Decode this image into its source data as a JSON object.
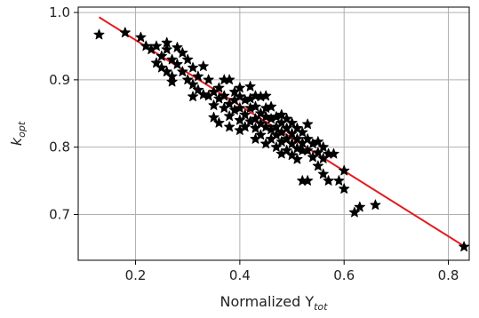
{
  "chart_data": {
    "type": "scatter",
    "title": "",
    "xlabel": "Normalized Y",
    "xlabel_sub": "tot",
    "ylabel": "k",
    "ylabel_sub": "opt",
    "xlim": [
      0.09,
      0.84
    ],
    "ylim": [
      0.632,
      1.008
    ],
    "grid": true,
    "x_ticks": [
      0.2,
      0.4,
      0.6,
      0.8
    ],
    "y_ticks": [
      0.7,
      0.8,
      0.9,
      1.0
    ],
    "x_tick_labels": [
      "0.2",
      "0.4",
      "0.6",
      "0.8"
    ],
    "y_tick_labels": [
      "0.7",
      "0.8",
      "0.9",
      "1.0"
    ],
    "colors": {
      "marker": "#000000",
      "fit_line": "#e41a1c",
      "grid": "#b0b0b0"
    },
    "series": [
      {
        "marker": "star",
        "points": [
          [
            0.13,
            0.967
          ],
          [
            0.18,
            0.97
          ],
          [
            0.21,
            0.963
          ],
          [
            0.22,
            0.95
          ],
          [
            0.23,
            0.945
          ],
          [
            0.24,
            0.95
          ],
          [
            0.24,
            0.925
          ],
          [
            0.25,
            0.935
          ],
          [
            0.25,
            0.918
          ],
          [
            0.26,
            0.955
          ],
          [
            0.26,
            0.945
          ],
          [
            0.26,
            0.912
          ],
          [
            0.27,
            0.93
          ],
          [
            0.27,
            0.905
          ],
          [
            0.27,
            0.897
          ],
          [
            0.28,
            0.948
          ],
          [
            0.28,
            0.923
          ],
          [
            0.29,
            0.94
          ],
          [
            0.29,
            0.912
          ],
          [
            0.3,
            0.93
          ],
          [
            0.3,
            0.9
          ],
          [
            0.31,
            0.918
          ],
          [
            0.31,
            0.893
          ],
          [
            0.31,
            0.875
          ],
          [
            0.32,
            0.905
          ],
          [
            0.32,
            0.885
          ],
          [
            0.33,
            0.92
          ],
          [
            0.33,
            0.878
          ],
          [
            0.34,
            0.9
          ],
          [
            0.34,
            0.876
          ],
          [
            0.35,
            0.882
          ],
          [
            0.35,
            0.862
          ],
          [
            0.35,
            0.844
          ],
          [
            0.36,
            0.888
          ],
          [
            0.36,
            0.872
          ],
          [
            0.36,
            0.836
          ],
          [
            0.37,
            0.9
          ],
          [
            0.37,
            0.876
          ],
          [
            0.37,
            0.858
          ],
          [
            0.38,
            0.9
          ],
          [
            0.38,
            0.864
          ],
          [
            0.38,
            0.846
          ],
          [
            0.38,
            0.83
          ],
          [
            0.39,
            0.882
          ],
          [
            0.39,
            0.87
          ],
          [
            0.39,
            0.855
          ],
          [
            0.4,
            0.888
          ],
          [
            0.4,
            0.875
          ],
          [
            0.4,
            0.858
          ],
          [
            0.4,
            0.84
          ],
          [
            0.4,
            0.825
          ],
          [
            0.41,
            0.87
          ],
          [
            0.41,
            0.848
          ],
          [
            0.41,
            0.83
          ],
          [
            0.42,
            0.89
          ],
          [
            0.42,
            0.872
          ],
          [
            0.42,
            0.858
          ],
          [
            0.42,
            0.838
          ],
          [
            0.43,
            0.876
          ],
          [
            0.43,
            0.86
          ],
          [
            0.43,
            0.842
          ],
          [
            0.43,
            0.828
          ],
          [
            0.43,
            0.812
          ],
          [
            0.44,
            0.875
          ],
          [
            0.44,
            0.85
          ],
          [
            0.44,
            0.835
          ],
          [
            0.44,
            0.818
          ],
          [
            0.45,
            0.876
          ],
          [
            0.45,
            0.858
          ],
          [
            0.45,
            0.845
          ],
          [
            0.45,
            0.83
          ],
          [
            0.45,
            0.805
          ],
          [
            0.46,
            0.86
          ],
          [
            0.46,
            0.842
          ],
          [
            0.46,
            0.826
          ],
          [
            0.46,
            0.812
          ],
          [
            0.47,
            0.845
          ],
          [
            0.47,
            0.83
          ],
          [
            0.47,
            0.818
          ],
          [
            0.47,
            0.8
          ],
          [
            0.48,
            0.848
          ],
          [
            0.48,
            0.836
          ],
          [
            0.48,
            0.822
          ],
          [
            0.48,
            0.808
          ],
          [
            0.48,
            0.79
          ],
          [
            0.49,
            0.842
          ],
          [
            0.49,
            0.828
          ],
          [
            0.49,
            0.812
          ],
          [
            0.49,
            0.795
          ],
          [
            0.5,
            0.836
          ],
          [
            0.5,
            0.82
          ],
          [
            0.5,
            0.805
          ],
          [
            0.5,
            0.788
          ],
          [
            0.51,
            0.828
          ],
          [
            0.51,
            0.812
          ],
          [
            0.51,
            0.798
          ],
          [
            0.51,
            0.782
          ],
          [
            0.52,
            0.822
          ],
          [
            0.52,
            0.806
          ],
          [
            0.52,
            0.795
          ],
          [
            0.52,
            0.75
          ],
          [
            0.53,
            0.834
          ],
          [
            0.53,
            0.812
          ],
          [
            0.53,
            0.795
          ],
          [
            0.53,
            0.75
          ],
          [
            0.54,
            0.805
          ],
          [
            0.54,
            0.785
          ],
          [
            0.55,
            0.808
          ],
          [
            0.55,
            0.792
          ],
          [
            0.55,
            0.772
          ],
          [
            0.56,
            0.8
          ],
          [
            0.56,
            0.783
          ],
          [
            0.56,
            0.76
          ],
          [
            0.57,
            0.79
          ],
          [
            0.57,
            0.75
          ],
          [
            0.58,
            0.79
          ],
          [
            0.59,
            0.75
          ],
          [
            0.6,
            0.765
          ],
          [
            0.6,
            0.738
          ],
          [
            0.62,
            0.703
          ],
          [
            0.63,
            0.711
          ],
          [
            0.66,
            0.714
          ],
          [
            0.83,
            0.652
          ]
        ]
      }
    ],
    "fit_line": {
      "points": [
        [
          0.13,
          0.993
        ],
        [
          0.83,
          0.653
        ]
      ]
    }
  }
}
